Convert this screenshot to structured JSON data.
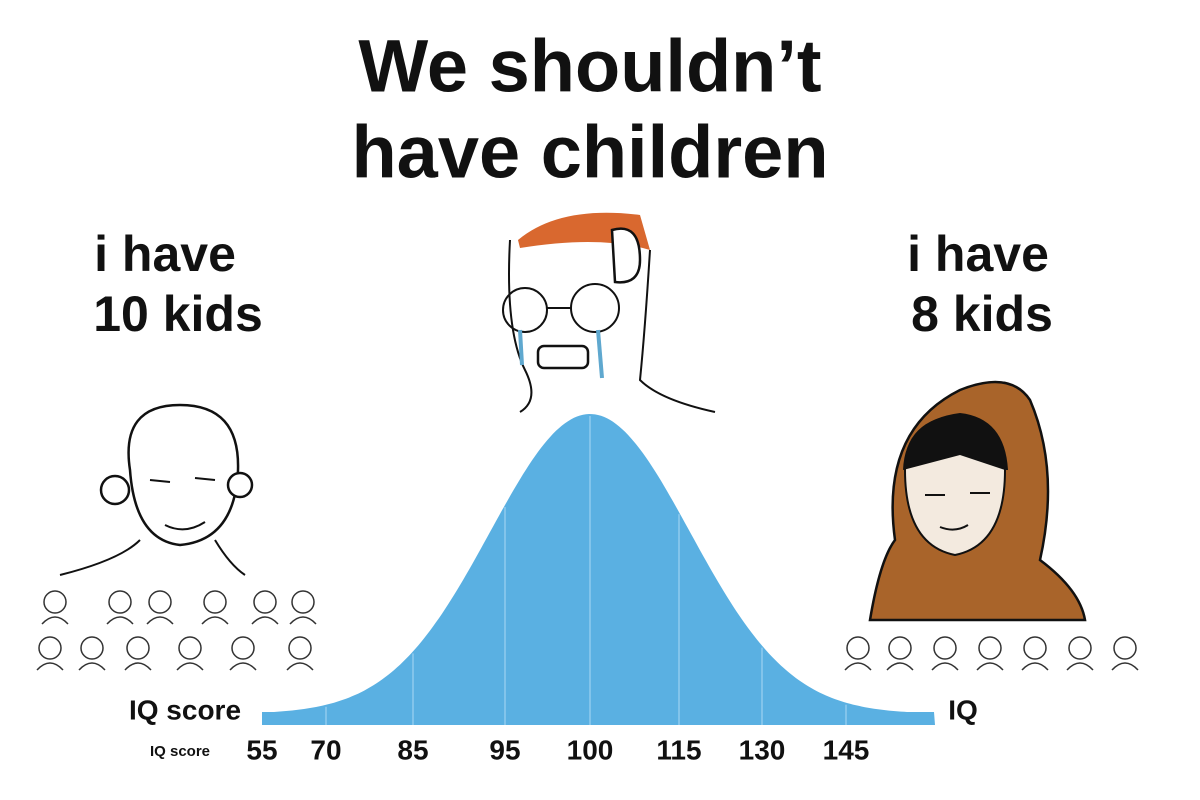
{
  "title": {
    "lines": [
      "We shouldn’t",
      "have children"
    ]
  },
  "left": {
    "lines": [
      "i have",
      "10 kids"
    ]
  },
  "right": {
    "lines": [
      "i have",
      "8 kids"
    ]
  },
  "axis": {
    "left_label": "IQ score",
    "right_label": "IQ",
    "small_label": "IQ score",
    "ticks": [
      "55",
      "70",
      "85",
      "95",
      "100",
      "115",
      "130",
      "145"
    ]
  }
}
